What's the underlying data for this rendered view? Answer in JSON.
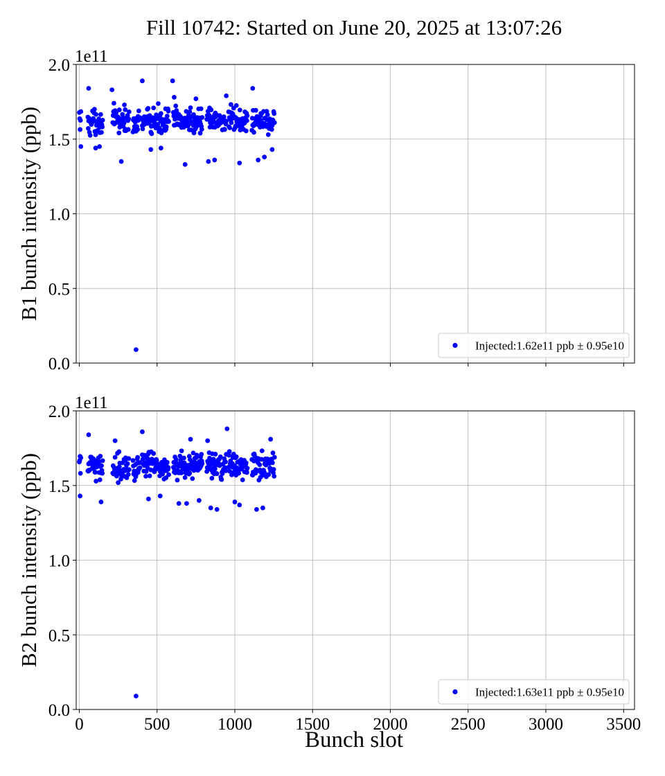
{
  "title": "Fill 10742: Started on June 20, 2025 at 13:07:26",
  "xlabel": "Bunch slot",
  "legend_markers": [
    "blue-dot",
    "blue-dot"
  ],
  "chart_data": [
    {
      "type": "scatter",
      "ylabel": "B1 bunch intensity (ppb)",
      "y_multiplier": "1e11",
      "xlim": [
        -20,
        3570
      ],
      "ylim": [
        0.0,
        2.0
      ],
      "xticks": [
        0,
        500,
        1000,
        1500,
        2000,
        2500,
        3000,
        3500
      ],
      "xtick_labels_visible": false,
      "yticks": [
        0.0,
        0.5,
        1.0,
        1.5,
        2.0
      ],
      "ytick_labels": [
        "0.0",
        "0.5",
        "1.0",
        "1.5",
        "2.0"
      ],
      "grid": true,
      "legend_position": "lower-right",
      "series": [
        {
          "name": "Injected:1.62e11 ppb ± 0.95e10",
          "color": "#0000ff",
          "mean": 1.62,
          "std": 0.095,
          "trains": [
            [
              0,
              12
            ],
            [
              55,
              150
            ],
            [
              215,
              320
            ],
            [
              345,
              392
            ],
            [
              405,
              575
            ],
            [
              605,
              790
            ],
            [
              820,
              945
            ],
            [
              960,
              1080
            ],
            [
              1110,
              1255
            ]
          ],
          "highlighted_points": [
            [
              10,
              1.45
            ],
            [
              60,
              1.84
            ],
            [
              105,
              1.44
            ],
            [
              130,
              1.45
            ],
            [
              210,
              1.83
            ],
            [
              270,
              1.35
            ],
            [
              365,
              0.09
            ],
            [
              405,
              1.89
            ],
            [
              460,
              1.43
            ],
            [
              525,
              1.44
            ],
            [
              600,
              1.89
            ],
            [
              610,
              1.78
            ],
            [
              680,
              1.33
            ],
            [
              750,
              1.77
            ],
            [
              830,
              1.35
            ],
            [
              870,
              1.36
            ],
            [
              945,
              1.79
            ],
            [
              1030,
              1.34
            ],
            [
              1115,
              1.84
            ],
            [
              1150,
              1.36
            ],
            [
              1190,
              1.38
            ],
            [
              1240,
              1.43
            ]
          ]
        }
      ]
    },
    {
      "type": "scatter",
      "ylabel": "B2 bunch intensity (ppb)",
      "y_multiplier": "1e11",
      "xlim": [
        -20,
        3570
      ],
      "ylim": [
        0.0,
        2.0
      ],
      "xticks": [
        0,
        500,
        1000,
        1500,
        2000,
        2500,
        3000,
        3500
      ],
      "xtick_labels": [
        "0",
        "500",
        "1000",
        "1500",
        "2000",
        "2500",
        "3000",
        "3500"
      ],
      "yticks": [
        0.0,
        0.5,
        1.0,
        1.5,
        2.0
      ],
      "ytick_labels": [
        "0.0",
        "0.5",
        "1.0",
        "1.5",
        "2.0"
      ],
      "grid": true,
      "legend_position": "lower-right",
      "series": [
        {
          "name": "Injected:1.63e11 ppb ± 0.95e10",
          "color": "#0000ff",
          "mean": 1.63,
          "std": 0.095,
          "trains": [
            [
              0,
              12
            ],
            [
              55,
              150
            ],
            [
              215,
              320
            ],
            [
              345,
              392
            ],
            [
              405,
              575
            ],
            [
              605,
              790
            ],
            [
              820,
              945
            ],
            [
              960,
              1080
            ],
            [
              1110,
              1255
            ]
          ],
          "highlighted_points": [
            [
              5,
              1.43
            ],
            [
              60,
              1.84
            ],
            [
              140,
              1.39
            ],
            [
              230,
              1.8
            ],
            [
              365,
              0.09
            ],
            [
              405,
              1.86
            ],
            [
              445,
              1.41
            ],
            [
              520,
              1.43
            ],
            [
              640,
              1.38
            ],
            [
              690,
              1.38
            ],
            [
              715,
              1.81
            ],
            [
              770,
              1.4
            ],
            [
              825,
              1.8
            ],
            [
              845,
              1.35
            ],
            [
              885,
              1.34
            ],
            [
              950,
              1.88
            ],
            [
              1000,
              1.39
            ],
            [
              1030,
              1.37
            ],
            [
              1140,
              1.34
            ],
            [
              1180,
              1.35
            ],
            [
              1230,
              1.81
            ]
          ]
        }
      ]
    }
  ]
}
